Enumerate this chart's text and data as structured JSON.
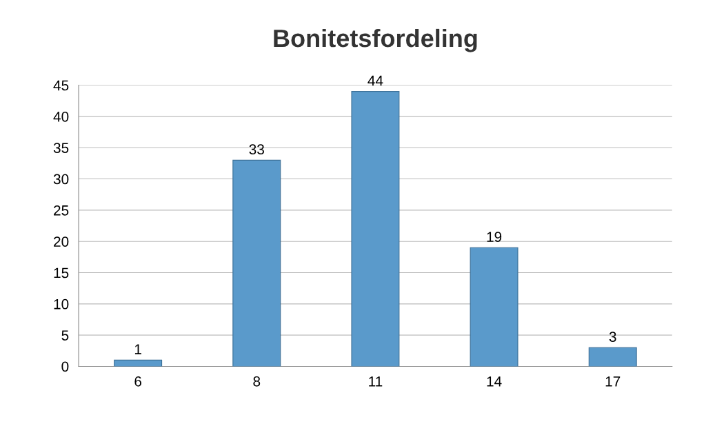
{
  "chart_data": {
    "type": "bar",
    "title": "Bonitetsfordeling",
    "categories": [
      "6",
      "8",
      "11",
      "14",
      "17"
    ],
    "values": [
      1,
      33,
      44,
      19,
      3
    ],
    "color": "#5a9acb",
    "ylim": [
      0,
      45
    ],
    "yticks": [
      0,
      5,
      10,
      15,
      20,
      25,
      30,
      35,
      40,
      45
    ],
    "grid": "y",
    "data_labels": true
  }
}
